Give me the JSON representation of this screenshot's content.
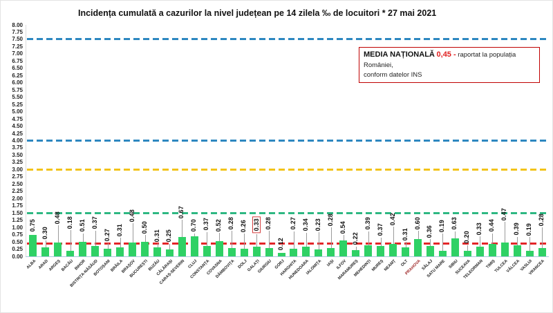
{
  "title": "Incidența cumulată a cazurilor la nivel județean pe 14 zilela ‰ de locuitori *  27 mai 2021",
  "legend_box": {
    "label_bold": "MEDIA NAȚIONALĂ",
    "value": "0,45 -",
    "text_after": "raportat la populația României,",
    "text_line2": "conform datelor INS"
  },
  "chart_data": {
    "type": "bar",
    "title": "Incidența cumulată a cazurilor la nivel județean pe 14 zilela ‰ de locuitori *  27 mai 2021",
    "categories": [
      "ALBA",
      "ARAD",
      "ARGEȘ",
      "BACĂU",
      "BIHOR",
      "BISTRIȚA-NĂSĂUD",
      "BOTOȘANI",
      "BRĂILA",
      "BRAȘOV",
      "BUCUREȘTI",
      "BUZĂU",
      "CĂLĂRAȘI",
      "CARAȘ-SEVERIN",
      "CLUJ",
      "CONSTANȚA",
      "COVASNA",
      "DÂMBOVIȚA",
      "DOLJ",
      "GALAȚI",
      "GIURGIU",
      "GORJ",
      "HARGHITA",
      "HUNEDOARA",
      "IALOMIȚA",
      "IAȘI",
      "ILFOV",
      "MARAMUREȘ",
      "MEHEDINȚI",
      "MUREȘ",
      "NEAMȚ",
      "OLT",
      "PRAHOVA",
      "SĂLAJ",
      "SATU MARE",
      "SIBIU",
      "SUCEAVA",
      "TELEORMAN",
      "TIMIȘ",
      "TULCEA",
      "VÂLCEA",
      "VASLUI",
      "VRANCEA"
    ],
    "values": [
      0.75,
      0.3,
      0.48,
      0.18,
      0.51,
      0.37,
      0.27,
      0.31,
      0.48,
      0.5,
      0.31,
      0.25,
      0.67,
      0.7,
      0.37,
      0.52,
      0.28,
      0.26,
      0.33,
      0.28,
      0.12,
      0.27,
      0.34,
      0.23,
      0.28,
      0.54,
      0.22,
      0.39,
      0.37,
      0.42,
      0.31,
      0.6,
      0.36,
      0.19,
      0.63,
      0.2,
      0.33,
      0.44,
      0.47,
      0.39,
      0.19,
      0.28
    ],
    "value_labels": [
      "0.75",
      "0.30",
      "0.48",
      "0.18",
      "0.51",
      "0.37",
      "0.27",
      "0.31",
      "0.48",
      "0.50",
      "0.31",
      "0.25",
      "0.67",
      "0.70",
      "0.37",
      "0.52",
      "0.28",
      "0.26",
      "0.33",
      "0.28",
      "0.12",
      "0.27",
      "0.34",
      "0.23",
      "0.28",
      "0.54",
      "0.22",
      "0.39",
      "0.37",
      "0.42",
      "0.31",
      "0.60",
      "0.36",
      "0.19",
      "0.63",
      "0.20",
      "0.33",
      "0.44",
      "0.47",
      "0.39",
      "0.19",
      "0.28"
    ],
    "y_ticks": [
      "8.00",
      "7.75",
      "7.50",
      "7.25",
      "7.00",
      "6.75",
      "6.50",
      "6.25",
      "6.00",
      "5.75",
      "5.50",
      "5.25",
      "5.00",
      "4.75",
      "4.50",
      "4.25",
      "4.00",
      "3.75",
      "3.50",
      "3.25",
      "3.00",
      "2.75",
      "2.50",
      "2.25",
      "2.00",
      "1.75",
      "1.50",
      "1.25",
      "1.00",
      "0.75",
      "0.50",
      "0.25",
      "0.00"
    ],
    "ylim": [
      0,
      8
    ],
    "ytick_step": 0.25,
    "grid": "off",
    "bar_color": "#2fd165",
    "national_average": 0.45,
    "reference_lines": [
      {
        "value": 7.5,
        "color": "#2d87c0",
        "style": "dashed",
        "name": "threshold-7-50"
      },
      {
        "value": 4.0,
        "color": "#2d87c0",
        "style": "dashed",
        "name": "threshold-4-00"
      },
      {
        "value": 3.0,
        "color": "#f2c318",
        "style": "dashed",
        "name": "threshold-3-00"
      },
      {
        "value": 1.5,
        "color": "#2eb882",
        "style": "dashed",
        "name": "threshold-1-50"
      },
      {
        "value": 0.45,
        "color": "#e42528",
        "style": "dashed",
        "name": "media-nationala-line"
      }
    ],
    "highlights": {
      "boxed_value_category": "GALAȚI",
      "red_label_category": "PRAHOVA"
    }
  }
}
